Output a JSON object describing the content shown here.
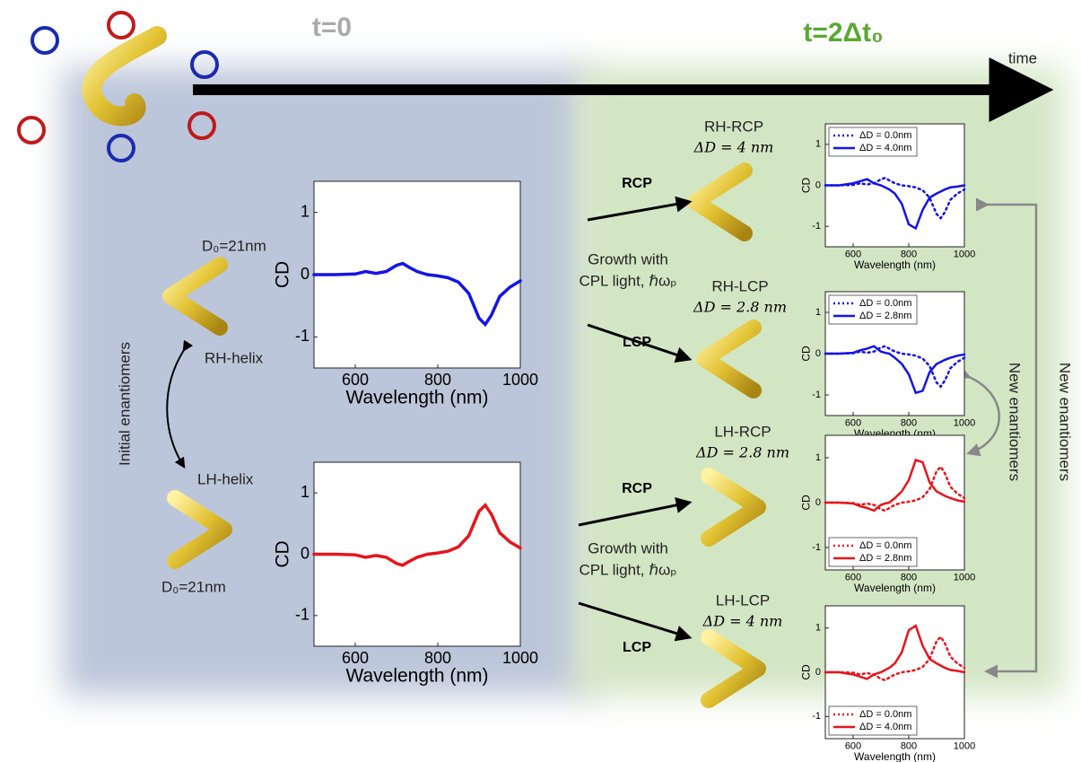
{
  "labels": {
    "t0": "t=0",
    "t2": "t=2Δt₀",
    "time": "time",
    "d0_top": "D₀=21nm",
    "rh_helix": "RH-helix",
    "lh_helix": "LH-helix",
    "d0_bottom": "D₀=21nm",
    "initial": "Initial enantiomers",
    "rcp1": "RCP",
    "lcp1": "LCP",
    "growth1a": "Growth with",
    "growth1b": "CPL light, ℏωₚ",
    "rcp2": "RCP",
    "lcp2": "LCP",
    "growth2a": "Growth with",
    "growth2b": "CPL light, ℏωₚ",
    "rh_rcp": "RH-RCP",
    "rh_rcp_d": "ΔD = 4 nm",
    "rh_lcp": "RH-LCP",
    "rh_lcp_d": "ΔD = 2.8 nm",
    "lh_rcp": "LH-RCP",
    "lh_rcp_d": "ΔD = 2.8 nm",
    "lh_lcp": "LH-LCP",
    "lh_lcp_d": "ΔD = 4 nm",
    "new1": "New enantiomers",
    "new2": "New enantiomers"
  },
  "chart_data": [
    {
      "type": "line",
      "xlabel": "Wavelength (nm)",
      "ylabel": "CD",
      "xlim": [
        500,
        1000
      ],
      "ylim": [
        -1.5,
        1.5
      ],
      "xticks": [
        600,
        800,
        1000
      ],
      "yticks": [
        -1,
        0,
        1
      ],
      "x": [
        500,
        550,
        600,
        625,
        650,
        675,
        700,
        715,
        730,
        750,
        775,
        800,
        825,
        850,
        875,
        900,
        915,
        930,
        950,
        975,
        1000
      ],
      "series": [
        {
          "color": "#1414e6",
          "dash": "solid",
          "values": [
            0,
            0,
            0.01,
            0.05,
            0.02,
            0.05,
            0.15,
            0.18,
            0.12,
            0.05,
            0,
            -0.02,
            -0.05,
            -0.12,
            -0.3,
            -0.7,
            -0.8,
            -0.65,
            -0.35,
            -0.2,
            -0.1
          ]
        }
      ]
    },
    {
      "type": "line",
      "xlabel": "Wavelength (nm)",
      "ylabel": "CD",
      "xlim": [
        500,
        1000
      ],
      "ylim": [
        -1.5,
        1.5
      ],
      "xticks": [
        600,
        800,
        1000
      ],
      "yticks": [
        -1,
        0,
        1
      ],
      "x": [
        500,
        550,
        600,
        625,
        650,
        675,
        700,
        715,
        730,
        750,
        775,
        800,
        825,
        850,
        875,
        900,
        915,
        930,
        950,
        975,
        1000
      ],
      "series": [
        {
          "color": "#e8141c",
          "dash": "solid",
          "values": [
            0,
            0,
            -0.01,
            -0.05,
            -0.02,
            -0.05,
            -0.15,
            -0.18,
            -0.12,
            -0.05,
            0,
            0.02,
            0.05,
            0.12,
            0.3,
            0.7,
            0.8,
            0.65,
            0.35,
            0.2,
            0.1
          ]
        }
      ]
    },
    {
      "type": "line",
      "xlabel": "Wavelength (nm)",
      "ylabel": "CD",
      "xlim": [
        500,
        1000
      ],
      "ylim": [
        -1.5,
        1.5
      ],
      "xticks": [
        600,
        800,
        1000
      ],
      "yticks": [
        -1,
        0,
        1
      ],
      "legend": "upper left",
      "x": [
        500,
        550,
        600,
        625,
        650,
        675,
        700,
        715,
        730,
        750,
        775,
        800,
        825,
        850,
        875,
        900,
        915,
        930,
        950,
        975,
        1000
      ],
      "series": [
        {
          "name": "ΔD = 0.0nm",
          "color": "#1414e6",
          "dash": "dotted",
          "values": [
            0,
            0,
            0.01,
            0.05,
            0.02,
            0.05,
            0.15,
            0.18,
            0.12,
            0.05,
            0,
            -0.02,
            -0.05,
            -0.12,
            -0.3,
            -0.7,
            -0.8,
            -0.65,
            -0.35,
            -0.2,
            -0.1
          ]
        },
        {
          "name": "ΔD = 4.0nm",
          "color": "#1414e6",
          "dash": "solid",
          "values": [
            0,
            0,
            0.05,
            0.1,
            0.15,
            0.05,
            0,
            -0.05,
            -0.1,
            -0.2,
            -0.45,
            -0.95,
            -1.05,
            -0.6,
            -0.3,
            -0.2,
            -0.15,
            -0.1,
            -0.05,
            -0.03,
            0
          ]
        }
      ]
    },
    {
      "type": "line",
      "xlabel": "Wavelength (nm)",
      "ylabel": "CD",
      "xlim": [
        500,
        1000
      ],
      "ylim": [
        -1.5,
        1.5
      ],
      "xticks": [
        600,
        800,
        1000
      ],
      "yticks": [
        -1,
        0,
        1
      ],
      "legend": "upper left",
      "x": [
        500,
        550,
        600,
        625,
        650,
        675,
        700,
        715,
        730,
        750,
        775,
        800,
        825,
        850,
        875,
        900,
        915,
        930,
        950,
        975,
        1000
      ],
      "series": [
        {
          "name": "ΔD = 0.0nm",
          "color": "#1414e6",
          "dash": "dotted",
          "values": [
            0,
            0,
            0.01,
            0.05,
            0.02,
            0.05,
            0.15,
            0.18,
            0.12,
            0.05,
            0,
            -0.02,
            -0.05,
            -0.12,
            -0.3,
            -0.7,
            -0.8,
            -0.65,
            -0.35,
            -0.2,
            -0.1
          ]
        },
        {
          "name": "ΔD = 2.8nm",
          "color": "#1414e6",
          "dash": "solid",
          "values": [
            0,
            0,
            0.02,
            0.08,
            0.12,
            0.18,
            0.05,
            0.02,
            0,
            -0.1,
            -0.25,
            -0.5,
            -0.95,
            -0.9,
            -0.45,
            -0.25,
            -0.2,
            -0.15,
            -0.1,
            -0.05,
            -0.02
          ]
        }
      ]
    },
    {
      "type": "line",
      "xlabel": "Wavelength (nm)",
      "ylabel": "CD",
      "xlim": [
        500,
        1000
      ],
      "ylim": [
        -1.5,
        1.5
      ],
      "xticks": [
        600,
        800,
        1000
      ],
      "yticks": [
        -1,
        0,
        1
      ],
      "legend": "lower left",
      "x": [
        500,
        550,
        600,
        625,
        650,
        675,
        700,
        715,
        730,
        750,
        775,
        800,
        825,
        850,
        875,
        900,
        915,
        930,
        950,
        975,
        1000
      ],
      "series": [
        {
          "name": "ΔD = 0.0nm",
          "color": "#e8141c",
          "dash": "dotted",
          "values": [
            0,
            0,
            -0.01,
            -0.05,
            -0.02,
            -0.05,
            -0.15,
            -0.18,
            -0.12,
            -0.05,
            0,
            0.02,
            0.05,
            0.12,
            0.3,
            0.7,
            0.8,
            0.65,
            0.35,
            0.2,
            0.1
          ]
        },
        {
          "name": "ΔD = 2.8nm",
          "color": "#e8141c",
          "dash": "solid",
          "values": [
            0,
            0,
            -0.02,
            -0.08,
            -0.12,
            -0.18,
            -0.05,
            -0.02,
            0,
            0.1,
            0.25,
            0.5,
            0.95,
            0.9,
            0.45,
            0.25,
            0.2,
            0.15,
            0.1,
            0.05,
            0.02
          ]
        }
      ]
    },
    {
      "type": "line",
      "xlabel": "Wavelength (nm)",
      "ylabel": "CD",
      "xlim": [
        500,
        1000
      ],
      "ylim": [
        -1.5,
        1.5
      ],
      "xticks": [
        600,
        800,
        1000
      ],
      "yticks": [
        -1,
        0,
        1
      ],
      "legend": "lower left",
      "x": [
        500,
        550,
        600,
        625,
        650,
        675,
        700,
        715,
        730,
        750,
        775,
        800,
        825,
        850,
        875,
        900,
        915,
        930,
        950,
        975,
        1000
      ],
      "series": [
        {
          "name": "ΔD = 0.0nm",
          "color": "#e8141c",
          "dash": "dotted",
          "values": [
            0,
            0,
            -0.01,
            -0.05,
            -0.02,
            -0.05,
            -0.15,
            -0.18,
            -0.12,
            -0.05,
            0,
            0.02,
            0.05,
            0.12,
            0.3,
            0.7,
            0.8,
            0.65,
            0.35,
            0.2,
            0.1
          ]
        },
        {
          "name": "ΔD = 4.0nm",
          "color": "#e8141c",
          "dash": "solid",
          "values": [
            0,
            0,
            -0.05,
            -0.1,
            -0.15,
            -0.05,
            0,
            0.05,
            0.1,
            0.2,
            0.45,
            0.95,
            1.05,
            0.6,
            0.3,
            0.2,
            0.15,
            0.1,
            0.05,
            0.03,
            0
          ]
        }
      ]
    }
  ]
}
